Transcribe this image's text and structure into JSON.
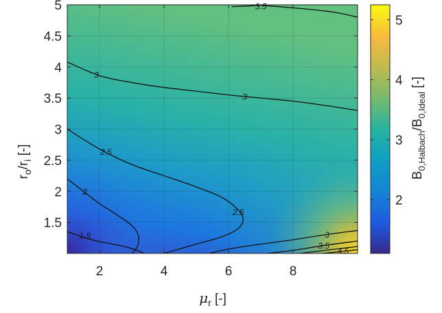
{
  "chart_data": {
    "type": "heatmap",
    "title": "",
    "xlabel": "μ_r [-]",
    "ylabel": "r_o/r_i [-]",
    "colorbar_label": "B_0,Halbach/B_0,Ideal [-]",
    "colormap": "parula",
    "xlim": [
      1,
      10
    ],
    "ylim": [
      1,
      5
    ],
    "clim": [
      1.1,
      5.25
    ],
    "x_ticks": [
      "2",
      "4",
      "6",
      "8"
    ],
    "y_ticks": [
      "1.5",
      "2",
      "2.5",
      "3",
      "3.5",
      "4",
      "4.5",
      "5"
    ],
    "colorbar_ticks": [
      "2",
      "3",
      "4",
      "5"
    ],
    "grid": true,
    "contour_lines": [
      {
        "level": "1.5",
        "x": [
          1.0,
          1.5,
          2.0,
          2.7,
          3.1,
          3.3,
          3.4
        ],
        "y": [
          1.35,
          1.26,
          1.19,
          1.12,
          1.06,
          1.02,
          1.0
        ]
      },
      {
        "level": "2",
        "x": [
          1.0,
          1.5,
          2.0,
          2.6,
          3.0,
          3.2,
          3.2,
          3.1,
          3.0
        ],
        "y": [
          2.2,
          2.0,
          1.8,
          1.6,
          1.45,
          1.3,
          1.15,
          1.05,
          1.0
        ]
      },
      {
        "level": "2.5",
        "x": [
          1.0,
          2.0,
          3.0,
          4.0,
          5.0,
          5.8,
          6.3,
          6.45,
          6.3,
          5.8,
          5.0,
          4.4,
          4.0
        ],
        "y": [
          3.0,
          2.68,
          2.43,
          2.25,
          2.07,
          1.9,
          1.7,
          1.55,
          1.4,
          1.27,
          1.15,
          1.06,
          1.0
        ]
      },
      {
        "level": "3",
        "x": [
          1.0,
          2.0,
          3.0,
          4.0,
          5.0,
          6.0,
          7.0,
          8.0,
          9.0,
          10.0
        ],
        "y": [
          4.08,
          3.86,
          3.75,
          3.67,
          3.61,
          3.55,
          3.5,
          3.45,
          3.38,
          3.3
        ]
      },
      {
        "level": "3",
        "x": [
          5.4,
          6.0,
          7.0,
          8.0,
          9.0,
          10.0
        ],
        "y": [
          1.0,
          1.07,
          1.15,
          1.22,
          1.3,
          1.37
        ]
      },
      {
        "level": "3.5",
        "x": [
          6.1,
          6.6,
          7.0,
          8.0,
          9.0,
          9.5,
          10.0
        ],
        "y": [
          4.97,
          4.98,
          4.99,
          4.95,
          4.9,
          4.86,
          4.8
        ]
      },
      {
        "level": "3.5",
        "x": [
          7.2,
          8.0,
          9.0,
          10.0
        ],
        "y": [
          1.0,
          1.05,
          1.13,
          1.2
        ]
      },
      {
        "level": "4",
        "x": [
          8.2,
          9.0,
          10.0
        ],
        "y": [
          1.0,
          1.05,
          1.11
        ]
      },
      {
        "level": "4.5",
        "x": [
          8.9,
          9.5,
          10.0
        ],
        "y": [
          1.0,
          1.03,
          1.06
        ]
      }
    ],
    "contour_label_positions": [
      {
        "text": "1.5",
        "x": 1.55,
        "y": 1.28
      },
      {
        "text": "2",
        "x": 1.55,
        "y": 1.99
      },
      {
        "text": "2.5",
        "x": 2.2,
        "y": 2.63
      },
      {
        "text": "2.5",
        "x": 6.3,
        "y": 1.66
      },
      {
        "text": "3",
        "x": 1.9,
        "y": 3.87
      },
      {
        "text": "3",
        "x": 6.5,
        "y": 3.52
      },
      {
        "text": "3",
        "x": 9.05,
        "y": 1.3
      },
      {
        "text": "3.5",
        "x": 7.0,
        "y": 4.97
      },
      {
        "text": "3.5",
        "x": 8.95,
        "y": 1.12
      },
      {
        "text": "4.5",
        "x": 9.55,
        "y": 1.04
      }
    ]
  }
}
